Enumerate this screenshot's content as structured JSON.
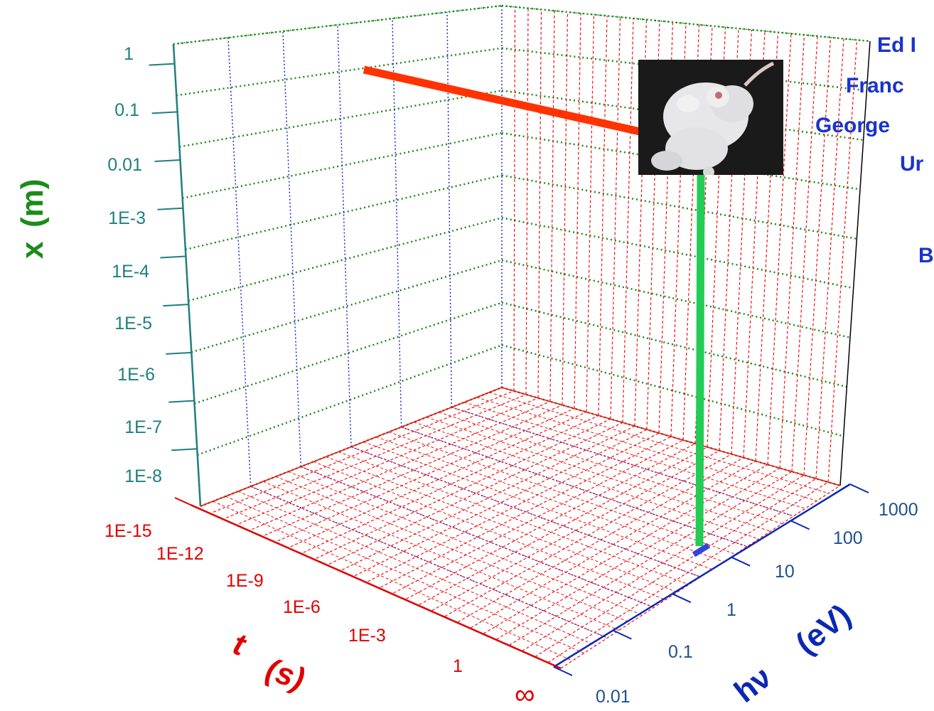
{
  "chart_data": {
    "type": "3d-line",
    "axes": {
      "x": {
        "label": "x",
        "unit": "(m)",
        "scale": "log",
        "ticks": [
          "1E-8",
          "1E-7",
          "1E-6",
          "1E-5",
          "1E-4",
          "1E-3",
          "0.01",
          "0.1",
          "1"
        ]
      },
      "t": {
        "label": "t",
        "unit": "(s)",
        "scale": "log",
        "ticks": [
          "1E-15",
          "1E-12",
          "1E-9",
          "1E-6",
          "1E-3",
          "1",
          "∞"
        ]
      },
      "hnu": {
        "label": "hν",
        "unit": "(eV)",
        "scale": "log",
        "ticks": [
          "0.01",
          "0.1",
          "1",
          "10",
          "100",
          "1000"
        ]
      }
    },
    "series": [
      {
        "color": "#ff3300",
        "along": "t",
        "t_range": [
          "1E-15",
          "∞"
        ],
        "x": "0.05",
        "hnu": "0.01"
      },
      {
        "color": "#22cc55",
        "along": "x",
        "x_range": [
          "1E-8",
          "0.05"
        ],
        "t": "∞",
        "hnu": "30"
      },
      {
        "color": "#3344dd",
        "along": "hnu",
        "hnu_range": [
          "10",
          "100"
        ],
        "t": "∞",
        "x": "1E-8"
      }
    ],
    "grid": true
  },
  "photo": {
    "subject": "white-mouse-photo"
  },
  "overlay_text": [
    "Ed I",
    "Franc",
    "George",
    "Ur",
    "B"
  ]
}
